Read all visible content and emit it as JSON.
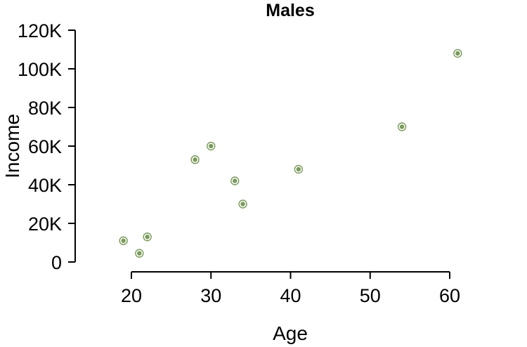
{
  "chart_data": {
    "type": "scatter",
    "title": "Males",
    "xlabel": "Age",
    "ylabel": "Income",
    "xlim": [
      20,
      60
    ],
    "ylim": [
      0,
      120000
    ],
    "xticks": [
      20,
      30,
      40,
      50,
      60
    ],
    "yticks": [
      0,
      20000,
      40000,
      60000,
      80000,
      100000,
      120000
    ],
    "xtick_labels": [
      "20",
      "30",
      "40",
      "50",
      "60"
    ],
    "ytick_labels": [
      "0",
      "20K",
      "40K",
      "60K",
      "80K",
      "100K",
      "120K"
    ],
    "grid": false,
    "marker_color": "#7a9a5c",
    "points": [
      {
        "x": 19,
        "y": 11000
      },
      {
        "x": 21,
        "y": 4500
      },
      {
        "x": 22,
        "y": 13000
      },
      {
        "x": 28,
        "y": 53000
      },
      {
        "x": 30,
        "y": 60000
      },
      {
        "x": 33,
        "y": 42000
      },
      {
        "x": 34,
        "y": 30000
      },
      {
        "x": 41,
        "y": 48000
      },
      {
        "x": 54,
        "y": 70000
      },
      {
        "x": 61,
        "y": 108000
      }
    ]
  }
}
